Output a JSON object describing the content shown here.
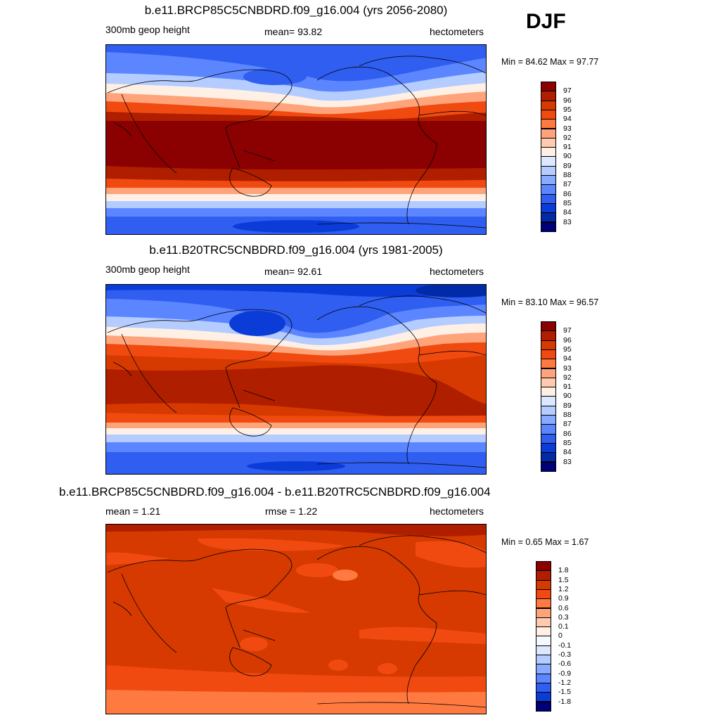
{
  "season": "DJF",
  "panels": [
    {
      "title": "b.e11.BRCP85C5CNBDRD.f09_g16.004 (yrs 2056-2080)",
      "left": "300mb geop height",
      "center": "mean=  93.82",
      "right": "hectometers",
      "minmax": "Min =  84.62 Max =  97.77",
      "colorbar": {
        "labels": [
          "97",
          "96",
          "95",
          "94",
          "93",
          "92",
          "91",
          "90",
          "89",
          "88",
          "87",
          "86",
          "85",
          "84",
          "83"
        ],
        "colors": [
          "#8b0000",
          "#b01e00",
          "#d63a00",
          "#f04a10",
          "#ff7a40",
          "#ffa47a",
          "#ffcab0",
          "#fff0e6",
          "#dce8ff",
          "#b4ccff",
          "#88aaff",
          "#5c86ff",
          "#2f5ef0",
          "#0b3cd8",
          "#002aa8",
          "#00007a"
        ]
      }
    },
    {
      "title": "b.e11.B20TRC5CNBDRD.f09_g16.004 (yrs 1981-2005)",
      "left": "300mb geop height",
      "center": "mean=  92.61",
      "right": "hectometers",
      "minmax": "Min =  83.10 Max =  96.57",
      "colorbar": {
        "labels": [
          "97",
          "96",
          "95",
          "94",
          "93",
          "92",
          "91",
          "90",
          "89",
          "88",
          "87",
          "86",
          "85",
          "84",
          "83"
        ],
        "colors": [
          "#8b0000",
          "#b01e00",
          "#d63a00",
          "#f04a10",
          "#ff7a40",
          "#ffa47a",
          "#ffcab0",
          "#fff0e6",
          "#dce8ff",
          "#b4ccff",
          "#88aaff",
          "#5c86ff",
          "#2f5ef0",
          "#0b3cd8",
          "#002aa8",
          "#00007a"
        ]
      }
    },
    {
      "title": "b.e11.BRCP85C5CNBDRD.f09_g16.004 - b.e11.B20TRC5CNBDRD.f09_g16.004",
      "left": "mean =   1.21",
      "center": "rmse =   1.22",
      "right": "hectometers",
      "minmax": "Min =   0.65 Max =   1.67",
      "colorbar": {
        "labels": [
          "1.8",
          "1.5",
          "1.2",
          "0.9",
          "0.6",
          "0.3",
          "0.1",
          "0",
          "-0.1",
          "-0.3",
          "-0.6",
          "-0.9",
          "-1.2",
          "-1.5",
          "-1.8"
        ],
        "colors": [
          "#8b0000",
          "#b01e00",
          "#d63a00",
          "#f04a10",
          "#ff7a40",
          "#ffa47a",
          "#ffcab0",
          "#fff0e6",
          "#f5f8ff",
          "#dce8ff",
          "#b4ccff",
          "#88aaff",
          "#5c86ff",
          "#2f5ef0",
          "#0b3cd8",
          "#00007a"
        ]
      }
    }
  ]
}
